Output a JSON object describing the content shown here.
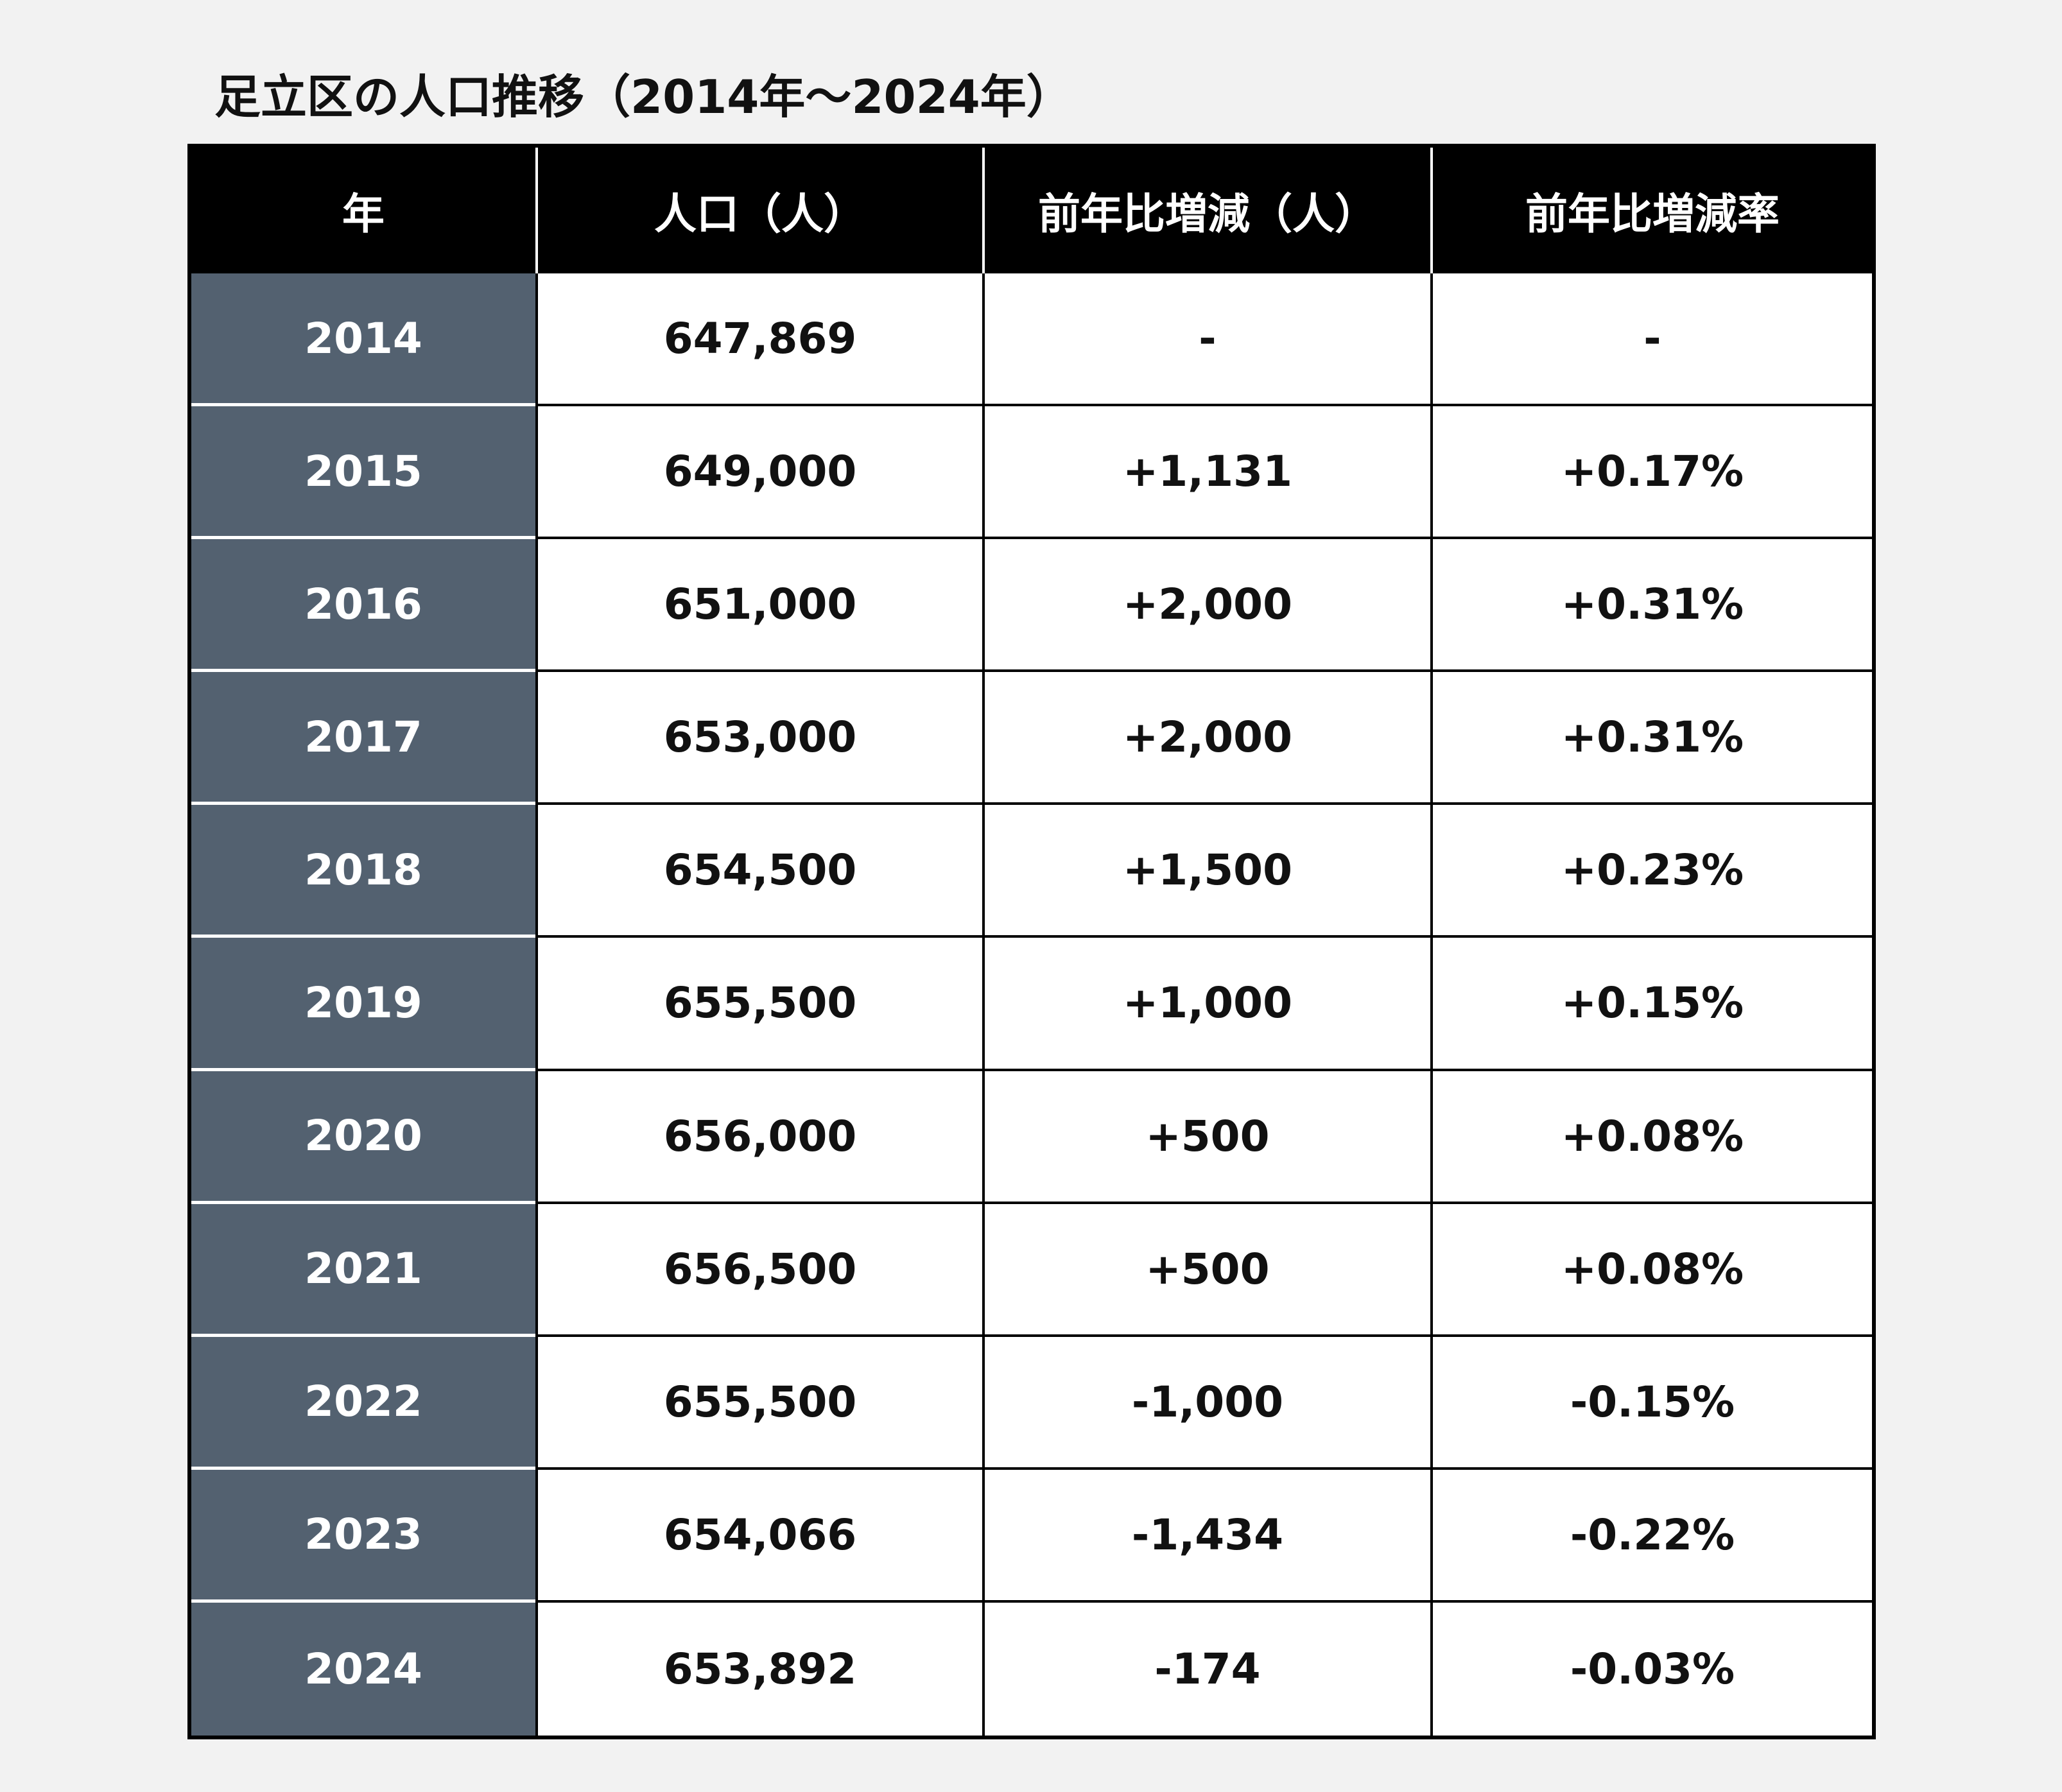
{
  "chart_data": {
    "type": "table",
    "title": "足立区の人口推移（2014年〜2024年）",
    "columns": [
      "年",
      "人口（人）",
      "前年比増減（人）",
      "前年比増減率"
    ],
    "rows": [
      {
        "year": "2014",
        "population": "647,869",
        "change": "-",
        "rate": "-"
      },
      {
        "year": "2015",
        "population": "649,000",
        "change": "+1,131",
        "rate": "+0.17%"
      },
      {
        "year": "2016",
        "population": "651,000",
        "change": "+2,000",
        "rate": "+0.31%"
      },
      {
        "year": "2017",
        "population": "653,000",
        "change": "+2,000",
        "rate": "+0.31%"
      },
      {
        "year": "2018",
        "population": "654,500",
        "change": "+1,500",
        "rate": "+0.23%"
      },
      {
        "year": "2019",
        "population": "655,500",
        "change": "+1,000",
        "rate": "+0.15%"
      },
      {
        "year": "2020",
        "population": "656,000",
        "change": "+500",
        "rate": "+0.08%"
      },
      {
        "year": "2021",
        "population": "656,500",
        "change": "+500",
        "rate": "+0.08%"
      },
      {
        "year": "2022",
        "population": "655,500",
        "change": "-1,000",
        "rate": "-0.15%"
      },
      {
        "year": "2023",
        "population": "654,066",
        "change": "-1,434",
        "rate": "-0.22%"
      },
      {
        "year": "2024",
        "population": "653,892",
        "change": "-174",
        "rate": "-0.03%"
      }
    ]
  },
  "colors": {
    "header_bg": "#000000",
    "year_col_bg": "#536170",
    "cell_bg": "#ffffff",
    "page_bg": "#f2f2f2"
  }
}
